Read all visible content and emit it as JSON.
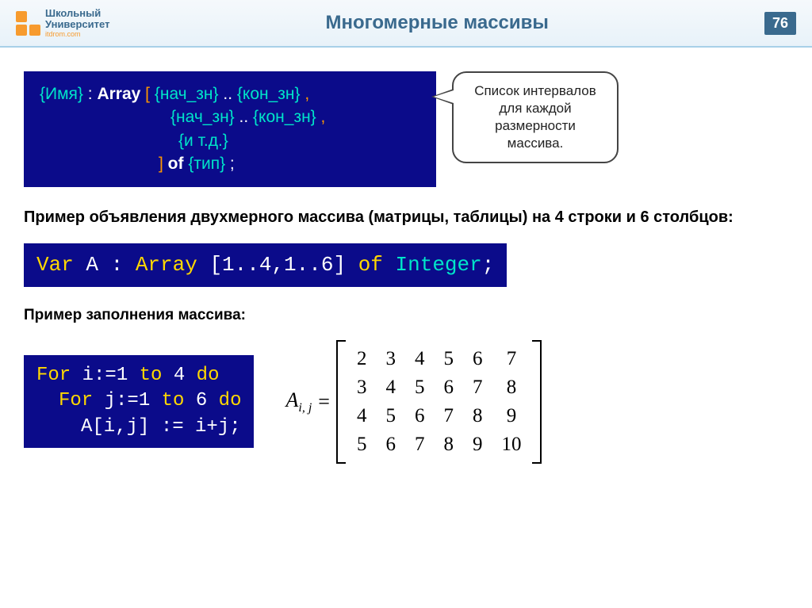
{
  "header": {
    "logo_line1": "Школьный",
    "logo_line2": "Университет",
    "logo_sub": "itdrom.com",
    "title": "Многомерные массивы",
    "page_number": "76"
  },
  "syntax": {
    "name_ph": "{Имя}",
    "colon": " : ",
    "array_kw": "Array",
    "lbr": " [ ",
    "start_ph": "{нач_зн}",
    "range": " .. ",
    "end_ph": "{кон_зн}",
    "comma": " ,",
    "etc_ph": "{и т.д.}",
    "rbr": "] ",
    "of_kw": "of",
    "type_ph": " {тип}",
    "semi": " ;"
  },
  "callout": {
    "text": "Список интервалов для каждой размерности массива."
  },
  "example_intro": "Пример объявления двухмерного массива (матрицы, таблицы) на 4 строки и 6 столбцов:",
  "decl_code": {
    "p1": "Var",
    "p2": " A : ",
    "p3": "Array",
    "p4": " [1..4,1..6] ",
    "p5": "of",
    "p6": " Integer",
    "p7": ";"
  },
  "fill_label": "Пример заполнения массива:",
  "fill_code": {
    "l1a": "For",
    "l1b": " i:=1 ",
    "l1c": "to",
    "l1d": " 4 ",
    "l1e": "do",
    "l2a": "For",
    "l2b": " j:=1 ",
    "l2c": "to",
    "l2d": " 6 ",
    "l2e": "do",
    "l3": "A[i,j] := i+j;"
  },
  "matrix": {
    "label": "A",
    "sub": "i, j",
    "equals": "=",
    "rows": [
      [
        "2",
        "3",
        "4",
        "5",
        "6",
        "7"
      ],
      [
        "3",
        "4",
        "5",
        "6",
        "7",
        "8"
      ],
      [
        "4",
        "5",
        "6",
        "7",
        "8",
        "9"
      ],
      [
        "5",
        "6",
        "7",
        "8",
        "9",
        "10"
      ]
    ]
  },
  "colors": {
    "header_text": "#3a6a8e",
    "code_bg": "#0b0b8a",
    "code_keyword": "#ffd800",
    "code_type": "#00e5c9",
    "syntax_bracket": "#ff9800",
    "syntax_placeholder": "#00e5c9",
    "logo_orange": "#f79b2e"
  }
}
